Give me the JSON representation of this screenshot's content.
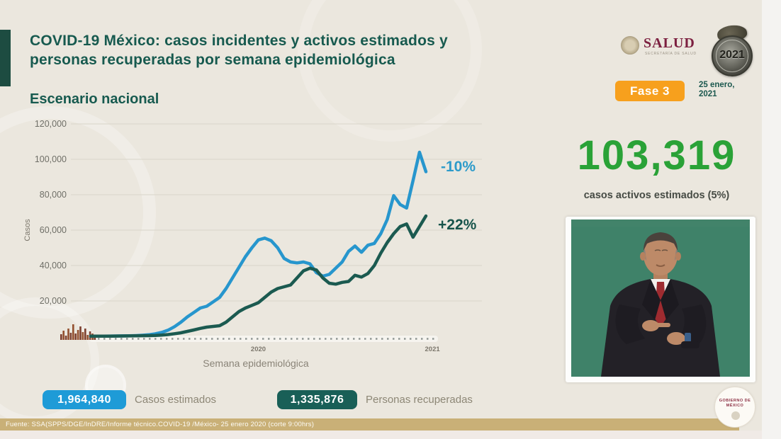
{
  "slide": {
    "title_line1": "COVID-19 México: casos incidentes y activos estimados y",
    "title_line2": "personas recuperadas por semana epidemiológica",
    "subtitle": "Escenario nacional"
  },
  "header_right": {
    "salud_logo_text": "SALUD",
    "salud_logo_subtext": "SECRETARÍA DE SALUD",
    "medallion_year": "2021",
    "fase_badge": "Fase 3",
    "date_line1": "25 enero,",
    "date_line2": "2021"
  },
  "stats": {
    "active_cases_value": "103,319",
    "active_cases_label": "casos activos estimados (5%)",
    "estimated_cases_value": "1,964,840",
    "estimated_cases_label": "Casos estimados",
    "recovered_value": "1,335,876",
    "recovered_label": "Personas recuperadas"
  },
  "footer": {
    "source": "Fuente: SSA(SPPS/DGE/InDRE/Informe técnico.COVID-19 /México- 25 enero 2020 (corte 9:00hrs)"
  },
  "seal": {
    "line1": "GOBIERNO DE",
    "line2": "MÉXICO"
  },
  "colors": {
    "title_green": "#175a4f",
    "accent_bar_green": "#1d4c41",
    "active_number_green": "#2aa237",
    "fase_orange": "#f7a01d",
    "badge_blue": "#1e9bd7",
    "badge_teal": "#195f57",
    "salud_maroon": "#7c2040",
    "date_green": "#1b584e",
    "footer_tan": "#c9b077",
    "video_green": "#3f8269",
    "annotation_blue": "#2d9bca",
    "annotation_teal": "#17544b"
  },
  "chart_data": {
    "type": "line",
    "title": "",
    "xlabel": "Semana epidemiológica",
    "ylabel": "Casos",
    "x_spacing": "semanal (53 semanas consecutivas, feb 2020 - ene 2021)",
    "ylim": [
      0,
      120000
    ],
    "grid": true,
    "legend_position": "none (valores acumulados en insignias inferiores)",
    "y_ticks": [
      {
        "label": "120,000",
        "value": 120000
      },
      {
        "label": "100,000",
        "value": 100000
      },
      {
        "label": "80,000",
        "value": 80000
      },
      {
        "label": "60,000",
        "value": 60000
      },
      {
        "label": "40,000",
        "value": 40000
      },
      {
        "label": "20,000",
        "value": 20000
      }
    ],
    "x_ticks": [
      {
        "label": "2020",
        "week": 26
      },
      {
        "label": "2021",
        "week": 53
      }
    ],
    "series": [
      {
        "name": "Casos estimados",
        "color": "#2796cd",
        "values": [
          100,
          100,
          100,
          150,
          200,
          250,
          300,
          400,
          600,
          900,
          1400,
          2200,
          3500,
          5500,
          8000,
          11000,
          13500,
          16000,
          17000,
          19500,
          22000,
          27000,
          33000,
          39000,
          45000,
          50000,
          54500,
          55500,
          54000,
          50000,
          44000,
          42000,
          41500,
          42000,
          41000,
          36000,
          34000,
          35000,
          38500,
          42000,
          48000,
          51000,
          47500,
          51500,
          52500,
          58000,
          66000,
          79500,
          74500,
          72500,
          88000,
          104000,
          93000
        ]
      },
      {
        "name": "Personas recuperadas",
        "color": "#1b5a50",
        "values": [
          100,
          100,
          100,
          100,
          150,
          200,
          250,
          300,
          350,
          400,
          500,
          700,
          1000,
          1500,
          2000,
          2800,
          3600,
          4500,
          5200,
          5600,
          6000,
          8000,
          11000,
          14000,
          16000,
          17500,
          19000,
          22000,
          25000,
          27000,
          28000,
          29000,
          33000,
          37000,
          38500,
          37500,
          33000,
          30000,
          29500,
          30500,
          31000,
          34500,
          33500,
          35500,
          40000,
          47000,
          53000,
          58000,
          62000,
          63500,
          56000,
          62000,
          68000
        ]
      }
    ],
    "annotations": [
      {
        "text": "-10%",
        "series": "Casos estimados",
        "color": "#2d9bca"
      },
      {
        "text": "+22%",
        "series": "Personas recuperadas",
        "color": "#17544b"
      }
    ],
    "baseline_dashed_line": true,
    "early_incident_bars": [
      8,
      13,
      6,
      16,
      10,
      22,
      9,
      14,
      19,
      11,
      16,
      7,
      12,
      9,
      5
    ]
  }
}
